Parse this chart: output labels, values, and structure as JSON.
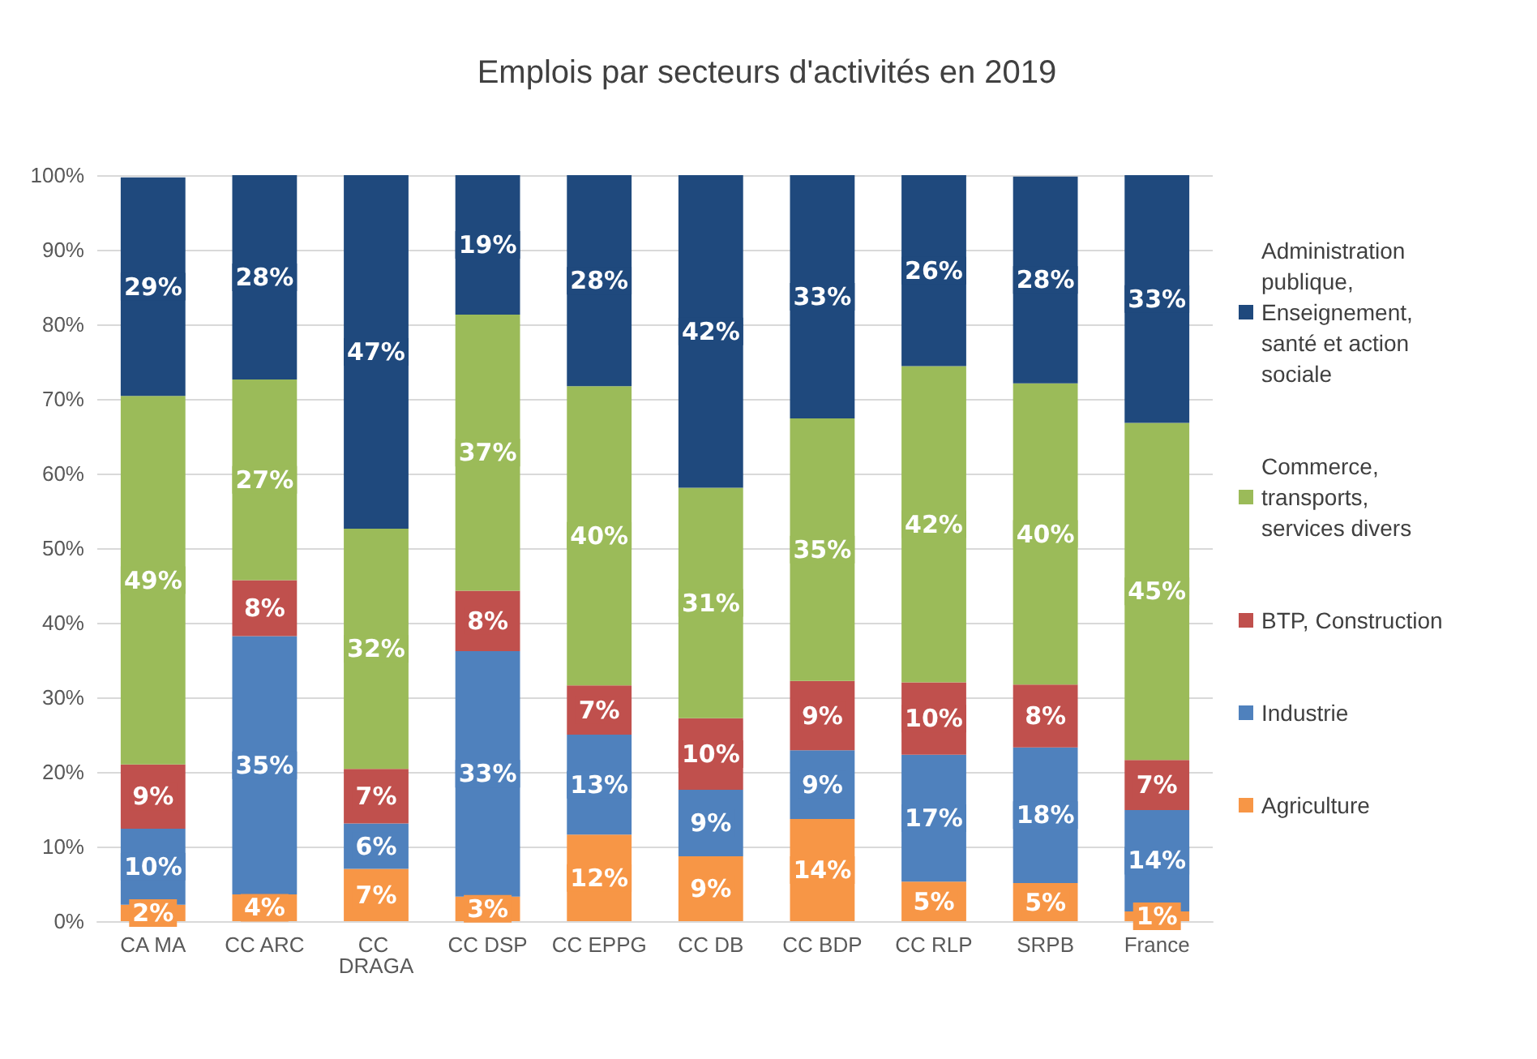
{
  "chart_data": {
    "type": "bar",
    "stacked": true,
    "title": "Emplois par secteurs d'activités en 2019",
    "categories": [
      "CA MA",
      "CC ARC",
      "CC DRAGA",
      "CC DSP",
      "CC EPPG",
      "CC DB",
      "CC BDP",
      "CC RLP",
      "SRPB",
      "France"
    ],
    "series": [
      {
        "name": "Agriculture",
        "color": "#f79646",
        "values": [
          2.2,
          3.6,
          7.0,
          3.3,
          11.6,
          8.7,
          13.7,
          5.3,
          5.1,
          1.3
        ],
        "value_labels": [
          "2%",
          "4%",
          "7%",
          "3%",
          "12%",
          "9%",
          "14%",
          "5%",
          "5%",
          "1%"
        ]
      },
      {
        "name": "Industrie",
        "color": "#4f81bd",
        "values": [
          10.2,
          34.6,
          6.1,
          32.9,
          13.4,
          8.9,
          9.2,
          17.0,
          18.2,
          13.6
        ],
        "value_labels": [
          "10%",
          "35%",
          "6%",
          "33%",
          "13%",
          "9%",
          "9%",
          "17%",
          "18%",
          "14%"
        ]
      },
      {
        "name": "BTP, Construction",
        "color": "#c0504d",
        "values": [
          8.6,
          7.5,
          7.3,
          8.1,
          6.6,
          9.6,
          9.3,
          9.7,
          8.4,
          6.7
        ],
        "value_labels": [
          "9%",
          "8%",
          "7%",
          "8%",
          "7%",
          "10%",
          "9%",
          "10%",
          "8%",
          "7%"
        ]
      },
      {
        "name": "Commerce, transports, services divers",
        "color": "#9bbb59",
        "values": [
          49.4,
          26.9,
          32.2,
          37.0,
          40.1,
          30.9,
          35.2,
          42.4,
          40.4,
          45.2
        ],
        "value_labels": [
          "49%",
          "27%",
          "32%",
          "37%",
          "40%",
          "31%",
          "35%",
          "42%",
          "40%",
          "45%"
        ]
      },
      {
        "name": "Administration publique, Enseignement, santé et action sociale",
        "color": "#1f497d",
        "values": [
          29.3,
          27.5,
          47.4,
          18.7,
          28.3,
          41.9,
          32.6,
          25.6,
          27.7,
          33.3
        ],
        "value_labels": [
          "29%",
          "28%",
          "47%",
          "19%",
          "28%",
          "42%",
          "33%",
          "26%",
          "28%",
          "33%"
        ]
      }
    ],
    "ylim": [
      0,
      100
    ],
    "yticks": [
      {
        "value": 0,
        "label": "0%"
      },
      {
        "value": 10,
        "label": "10%"
      },
      {
        "value": 20,
        "label": "20%"
      },
      {
        "value": 30,
        "label": "30%"
      },
      {
        "value": 40,
        "label": "40%"
      },
      {
        "value": 50,
        "label": "50%"
      },
      {
        "value": 60,
        "label": "60%"
      },
      {
        "value": 70,
        "label": "70%"
      },
      {
        "value": 80,
        "label": "80%"
      },
      {
        "value": 90,
        "label": "90%"
      },
      {
        "value": 100,
        "label": "100%"
      }
    ],
    "grid": "y",
    "legend": "right"
  }
}
